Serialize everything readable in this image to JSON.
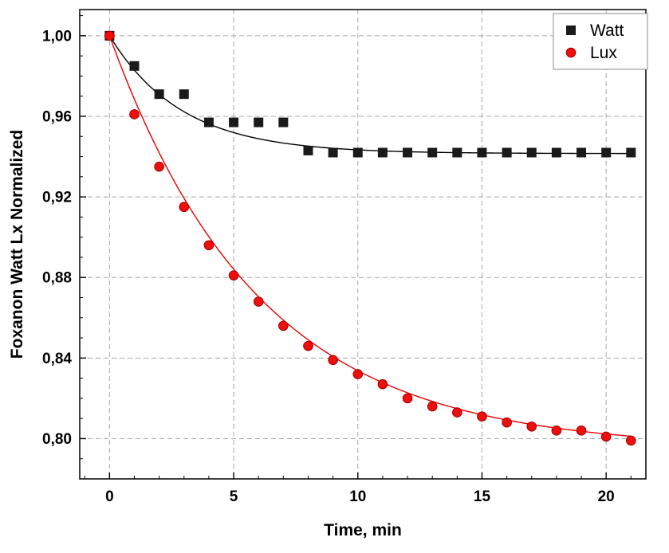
{
  "chart_data": {
    "type": "scatter",
    "title": "",
    "xlabel": "Time, min",
    "ylabel": "Foxanon Watt Lx Normalized",
    "xlim": [
      -1.2,
      21.6
    ],
    "ylim": [
      0.78,
      1.013
    ],
    "x_ticks": [
      0,
      5,
      10,
      15,
      20
    ],
    "x_tick_labels": [
      "0",
      "5",
      "10",
      "15",
      "20"
    ],
    "x_minor_step": 1,
    "y_ticks": [
      0.8,
      0.84,
      0.88,
      0.92,
      0.96,
      1.0
    ],
    "y_tick_labels": [
      "0,80",
      "0,84",
      "0,88",
      "0,92",
      "0,96",
      "1,00"
    ],
    "y_minor_step": 0.01,
    "grid": true,
    "grid_color": "#a8a8a8",
    "frame_color": "#000000",
    "legend_position": "top-right",
    "x": [
      0,
      1,
      2,
      3,
      4,
      5,
      6,
      7,
      8,
      9,
      10,
      11,
      12,
      13,
      14,
      15,
      16,
      17,
      18,
      19,
      20,
      21
    ],
    "series": [
      {
        "name": "Watt",
        "marker": "square",
        "color": "#1a1a1a",
        "edge_color": "#1a1a1a",
        "line_color": "#000000",
        "values": [
          1.0,
          0.985,
          0.971,
          0.971,
          0.957,
          0.957,
          0.957,
          0.957,
          0.943,
          0.942,
          0.942,
          0.942,
          0.942,
          0.942,
          0.942,
          0.942,
          0.942,
          0.942,
          0.942,
          0.942,
          0.942,
          0.942
        ],
        "fit": {
          "type": "exponential",
          "y0": 0.9415,
          "A": 0.0585,
          "tau": 2.9
        }
      },
      {
        "name": "Lux",
        "marker": "circle",
        "color": "#f20d0d",
        "edge_color": "#990000",
        "line_color": "#e60000",
        "values": [
          1.0,
          0.961,
          0.935,
          0.915,
          0.896,
          0.881,
          0.868,
          0.856,
          0.846,
          0.839,
          0.832,
          0.827,
          0.82,
          0.816,
          0.813,
          0.811,
          0.808,
          0.806,
          0.804,
          0.804,
          0.801,
          0.799
        ],
        "fit": {
          "type": "exponential",
          "y0": 0.795,
          "A": 0.205,
          "tau": 6.0
        }
      }
    ]
  }
}
